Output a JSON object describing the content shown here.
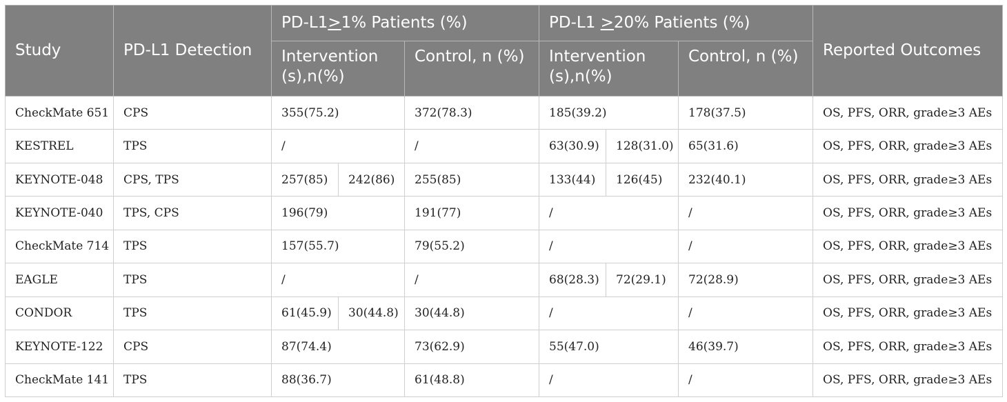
{
  "headers": {
    "study": "Study",
    "detection": "PD-L1 Detection",
    "group1": "PD-L1≥1% Patients (%)",
    "group2": "PD-L1 ≥20% Patients (%)",
    "outcomes": "Reported Outcomes",
    "intervention": "Intervention (s),n(%)",
    "control": "Control, n (%)"
  },
  "rows": [
    {
      "study": "CheckMate 651",
      "detection": "CPS",
      "p1_int": [
        "355(75.2)"
      ],
      "p1_ctrl": "372(78.3)",
      "p20_int": [
        "185(39.2)"
      ],
      "p20_ctrl": "178(37.5)",
      "outcomes": "OS, PFS, ORR, grade≥3 AEs"
    },
    {
      "study": "KESTREL",
      "detection": "TPS",
      "p1_int": [
        "/"
      ],
      "p1_ctrl": "/",
      "p20_int": [
        "63(30.9)",
        "128(31.0)"
      ],
      "p20_ctrl": "65(31.6)",
      "outcomes": "OS, PFS, ORR, grade≥3 AEs"
    },
    {
      "study": "KEYNOTE-048",
      "detection": "CPS, TPS",
      "p1_int": [
        "257(85)",
        "242(86)"
      ],
      "p1_ctrl": "255(85)",
      "p20_int": [
        "133(44)",
        "126(45)"
      ],
      "p20_ctrl": "232(40.1)",
      "outcomes": "OS, PFS, ORR, grade≥3 AEs"
    },
    {
      "study": "KEYNOTE-040",
      "detection": "TPS, CPS",
      "p1_int": [
        "196(79)"
      ],
      "p1_ctrl": "191(77)",
      "p20_int": [
        "/"
      ],
      "p20_ctrl": "/",
      "outcomes": "OS, PFS, ORR, grade≥3 AEs"
    },
    {
      "study": "CheckMate 714",
      "detection": "TPS",
      "p1_int": [
        "157(55.7)"
      ],
      "p1_ctrl": "79(55.2)",
      "p20_int": [
        "/"
      ],
      "p20_ctrl": "/",
      "outcomes": "OS, PFS, ORR, grade≥3 AEs"
    },
    {
      "study": "EAGLE",
      "detection": "TPS",
      "p1_int": [
        "/"
      ],
      "p1_ctrl": "/",
      "p20_int": [
        "68(28.3)",
        "72(29.1)"
      ],
      "p20_ctrl": "72(28.9)",
      "outcomes": "OS, PFS, ORR, grade≥3 AEs"
    },
    {
      "study": "CONDOR",
      "detection": "TPS",
      "p1_int": [
        "61(45.9)",
        "30(44.8)"
      ],
      "p1_ctrl": "30(44.8)",
      "p20_int": [
        "/"
      ],
      "p20_ctrl": "/",
      "outcomes": "OS, PFS, ORR, grade≥3 AEs"
    },
    {
      "study": "KEYNOTE-122",
      "detection": "CPS",
      "p1_int": [
        "87(74.4)"
      ],
      "p1_ctrl": "73(62.9)",
      "p20_int": [
        "55(47.0)"
      ],
      "p20_ctrl": "46(39.7)",
      "outcomes": "OS, PFS, ORR, grade≥3 AEs"
    },
    {
      "study": "CheckMate 141",
      "detection": "TPS",
      "p1_int": [
        "88(36.7)"
      ],
      "p1_ctrl": "61(48.8)",
      "p20_int": [
        "/"
      ],
      "p20_ctrl": "/",
      "outcomes": "OS, PFS, ORR, grade≥3 AEs"
    }
  ]
}
